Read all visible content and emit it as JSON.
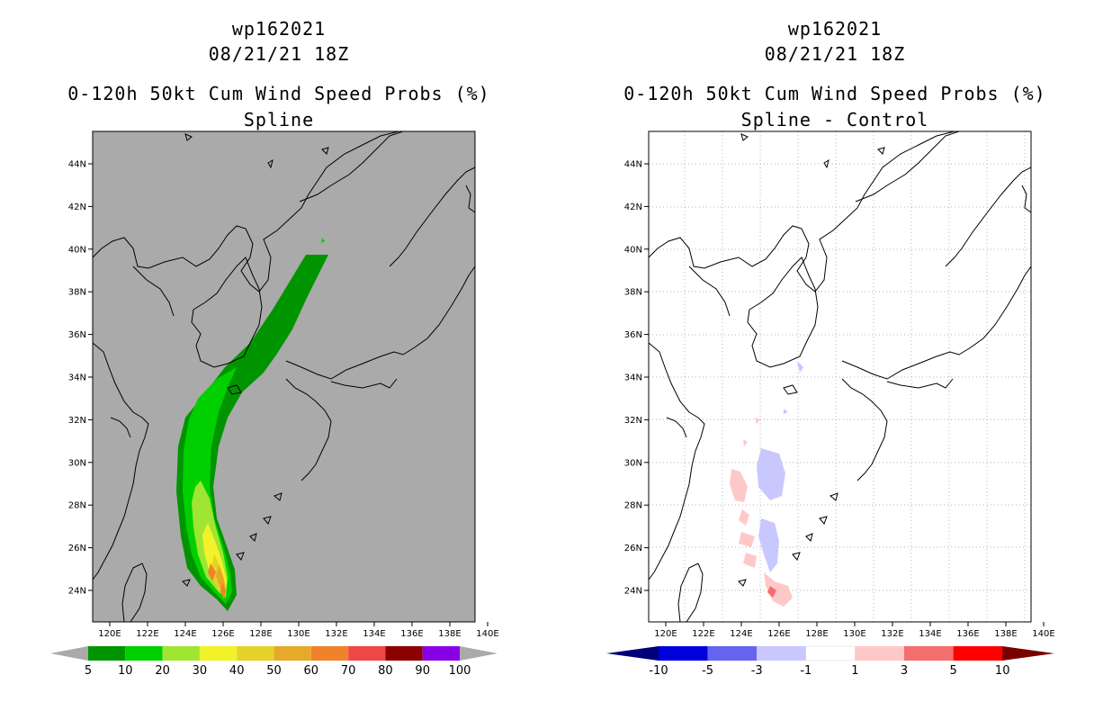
{
  "left_panel": {
    "storm_id": "wp162021",
    "datetime": "08/21/21 18Z",
    "product": "0-120h 50kt Cum Wind Speed Probs (%)",
    "method": "Spline",
    "colorbar_labels": [
      "5",
      "10",
      "20",
      "30",
      "40",
      "50",
      "60",
      "70",
      "80",
      "90",
      "100"
    ],
    "colorbar_colors": [
      "#009500",
      "#00cf00",
      "#9ee632",
      "#f2f22a",
      "#e6d22a",
      "#e6aa2a",
      "#f0822a",
      "#f04646",
      "#8c0000",
      "#8a00e6"
    ],
    "background_color": "#aaaaaa"
  },
  "right_panel": {
    "storm_id": "wp162021",
    "datetime": "08/21/21 18Z",
    "product": "0-120h 50kt Cum Wind Speed Probs (%)",
    "method": "Spline - Control",
    "colorbar_labels": [
      "-10",
      "-5",
      "-3",
      "-1",
      "1",
      "3",
      "5",
      "10"
    ],
    "colorbar_colors": [
      "#0000dc",
      "#6464f0",
      "#c8c8ff",
      "#ffffff",
      "#ffc8c8",
      "#f46e6e",
      "#ff0000"
    ],
    "colorbar_end_low": "#00007a",
    "colorbar_end_high": "#7a0000"
  },
  "map": {
    "lat_labels": [
      "24N",
      "26N",
      "28N",
      "30N",
      "32N",
      "34N",
      "36N",
      "38N",
      "40N",
      "42N",
      "44N"
    ],
    "lon_labels": [
      "120E",
      "122E",
      "124E",
      "126E",
      "128E",
      "130E",
      "132E",
      "134E",
      "136E",
      "138E",
      "140E"
    ]
  }
}
